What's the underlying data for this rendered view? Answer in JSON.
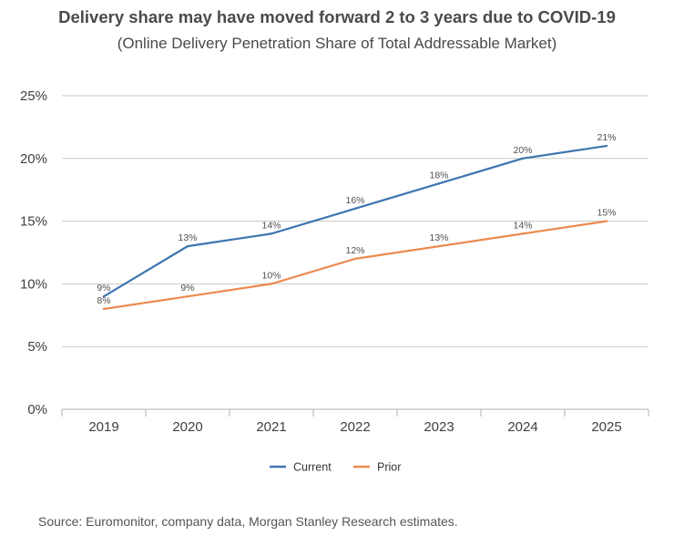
{
  "chart_data": {
    "type": "line",
    "title": "Delivery share may have moved forward 2 to 3 years due to COVID-19",
    "subtitle": "(Online Delivery Penetration Share of Total Addressable Market)",
    "xlabel": "",
    "ylabel": "",
    "categories": [
      "2019",
      "2020",
      "2021",
      "2022",
      "2023",
      "2024",
      "2025"
    ],
    "ylim": [
      0,
      25
    ],
    "yticks": [
      0,
      5,
      10,
      15,
      20,
      25
    ],
    "ytick_labels": [
      "0%",
      "5%",
      "10%",
      "15%",
      "20%",
      "25%"
    ],
    "grid": true,
    "legend_position": "bottom-center",
    "series": [
      {
        "name": "Current",
        "color": "#3e75b0",
        "values": [
          9,
          13,
          14,
          16,
          18,
          20,
          21
        ],
        "labels": [
          "9%",
          "13%",
          "14%",
          "16%",
          "18%",
          "20%",
          "21%"
        ]
      },
      {
        "name": "Prior",
        "color": "#ec8a4f",
        "values": [
          8,
          9,
          10,
          12,
          13,
          14,
          15
        ],
        "labels": [
          "8%",
          "9%",
          "10%",
          "12%",
          "13%",
          "14%",
          "15%"
        ]
      }
    ],
    "source": "Source: Euromonitor, company data, Morgan Stanley Research estimates."
  },
  "colors": {
    "grid": "#c8c8c8",
    "axis": "#b0b0b0"
  }
}
